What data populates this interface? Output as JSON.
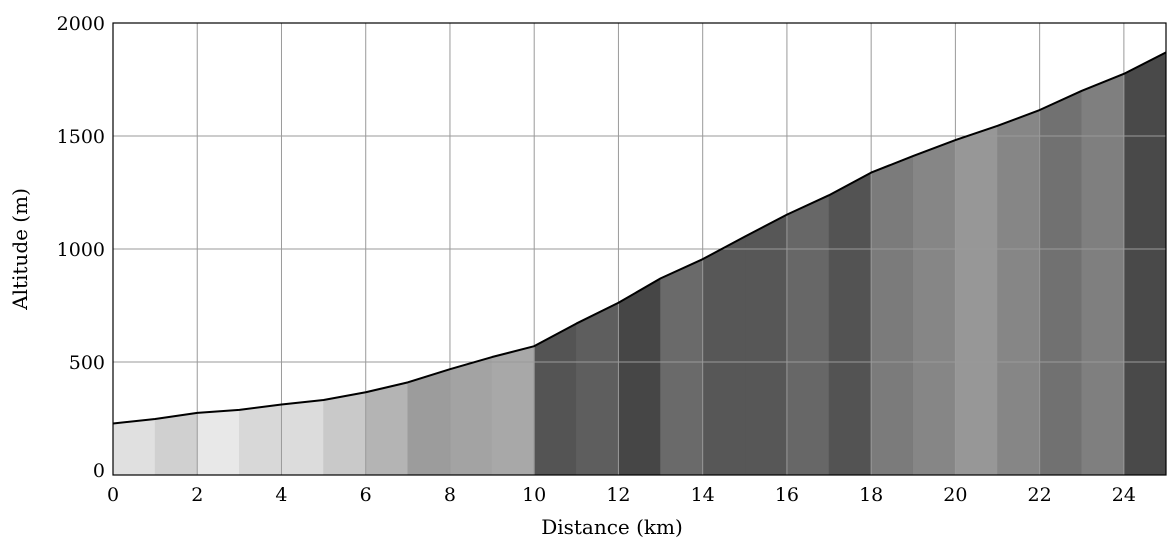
{
  "chart_data": {
    "type": "area",
    "title": "",
    "xlabel": "Distance (km)",
    "ylabel": "Altitude (m)",
    "xlim": [
      0,
      25
    ],
    "ylim": [
      0,
      2000
    ],
    "x_ticks": [
      "0",
      "2",
      "4",
      "6",
      "8",
      "10",
      "12",
      "14",
      "16",
      "18",
      "20",
      "22",
      "24"
    ],
    "y_ticks": [
      "0",
      "500",
      "1000",
      "1500",
      "2000"
    ],
    "grid": true,
    "x": [
      0,
      1,
      2,
      3,
      4,
      5,
      6,
      7,
      8,
      9,
      10,
      11,
      12,
      13,
      14,
      15,
      16,
      17,
      18,
      19,
      20,
      21,
      22,
      23,
      24,
      25
    ],
    "values": [
      228,
      248,
      275,
      288,
      312,
      332,
      366,
      410,
      468,
      522,
      570,
      670,
      762,
      870,
      955,
      1055,
      1152,
      1238,
      1338,
      1412,
      1482,
      1545,
      1615,
      1700,
      1775,
      1870
    ],
    "segment_colors": [
      "#e0e0e0",
      "#d0d0d0",
      "#e8e8e8",
      "#d8d8d8",
      "#dcdcdc",
      "#c9c9c9",
      "#b4b4b4",
      "#9c9c9c",
      "#a3a3a3",
      "#a8a8a8",
      "#545454",
      "#5e5e5e",
      "#464646",
      "#6a6a6a",
      "#575757",
      "#575757",
      "#676767",
      "#535353",
      "#7b7b7b",
      "#868686",
      "#979797",
      "#868686",
      "#717171",
      "#7f7f7f",
      "#494949"
    ]
  }
}
